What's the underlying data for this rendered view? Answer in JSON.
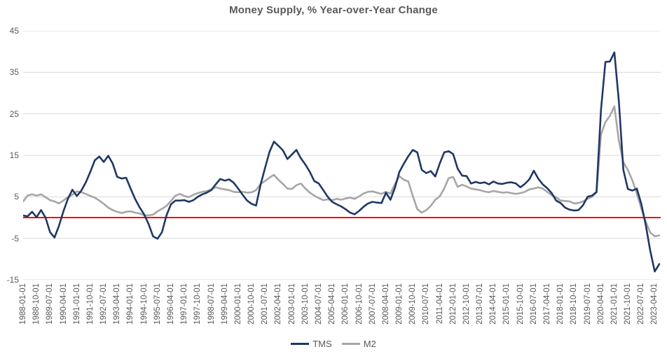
{
  "title": "Money Supply, % Year-over-Year Change",
  "legend": [
    {
      "label": "TMS",
      "color": "#1f3864"
    },
    {
      "label": "M2",
      "color": "#a6a6a6"
    }
  ],
  "colors": {
    "tms": "#1f3864",
    "m2": "#a6a6a6",
    "zero_line": "#ff0000",
    "gridline": "#d9d9d9",
    "text": "#595959"
  },
  "chart_data": {
    "type": "line",
    "title": "Money Supply, % Year-over-Year Change",
    "xlabel": "",
    "ylabel": "",
    "start_date": "1988-01-01",
    "step_months": 3,
    "x_domain_months": [
      0,
      427
    ],
    "ylim": [
      -15,
      45
    ],
    "y_ticks": [
      45,
      35,
      25,
      15,
      5,
      -5,
      -15
    ],
    "grid": true,
    "legend_position": "bottom",
    "zero_line": {
      "value": 0,
      "color": "#ff0000"
    },
    "x_tick_labels": [
      "1988-01-01",
      "1988-10-01",
      "1989-07-01",
      "1990-04-01",
      "1991-01-01",
      "1991-10-01",
      "1992-07-01",
      "1993-04-01",
      "1994-01-01",
      "1994-10-01",
      "1995-07-01",
      "1996-04-01",
      "1997-01-01",
      "1997-10-01",
      "1998-07-01",
      "1999-04-01",
      "2000-01-01",
      "2000-10-01",
      "2001-07-01",
      "2002-04-01",
      "2003-01-01",
      "2003-10-01",
      "2004-07-01",
      "2005-04-01",
      "2006-01-01",
      "2006-10-01",
      "2007-07-01",
      "2008-04-01",
      "2009-01-01",
      "2009-10-01",
      "2010-07-01",
      "2011-04-01",
      "2012-01-01",
      "2012-10-01",
      "2013-07-01",
      "2014-04-01",
      "2015-01-01",
      "2015-10-01",
      "2016-07-01",
      "2017-04-01",
      "2018-01-01",
      "2018-10-01",
      "2019-07-01",
      "2020-04-01",
      "2021-01-01",
      "2021-10-01",
      "2022-07-01",
      "2023-04-01"
    ],
    "x_tick_step_months": 9,
    "series": [
      {
        "name": "TMS",
        "color": "#1f3864",
        "values": [
          0.5,
          0.3,
          1.4,
          0.1,
          1.8,
          0.0,
          -3.5,
          -4.8,
          -2.0,
          1.5,
          4.5,
          6.7,
          5.2,
          6.5,
          8.5,
          11.0,
          13.8,
          14.7,
          13.4,
          14.9,
          13.0,
          9.8,
          9.4,
          9.6,
          7.0,
          4.5,
          2.5,
          0.8,
          -1.5,
          -4.5,
          -5.1,
          -3.5,
          0.5,
          3.2,
          4.1,
          4.1,
          4.2,
          3.8,
          4.2,
          5.0,
          5.6,
          6.0,
          6.6,
          8.0,
          9.3,
          8.9,
          9.2,
          8.4,
          7.0,
          5.5,
          4.1,
          3.3,
          2.9,
          7.9,
          11.9,
          15.8,
          18.3,
          17.3,
          16.2,
          14.1,
          15.2,
          16.3,
          14.3,
          12.8,
          11.0,
          8.8,
          8.2,
          6.6,
          5.0,
          3.8,
          3.2,
          2.7,
          2.0,
          1.2,
          0.8,
          1.6,
          2.6,
          3.4,
          3.8,
          3.6,
          3.5,
          6.0,
          4.3,
          7.2,
          11.0,
          13.0,
          14.8,
          16.3,
          15.7,
          11.5,
          10.7,
          11.2,
          9.9,
          13.0,
          15.7,
          16.0,
          15.3,
          11.8,
          10.1,
          10.0,
          8.2,
          8.6,
          8.3,
          8.5,
          8.0,
          8.7,
          8.2,
          8.1,
          8.4,
          8.5,
          8.2,
          7.3,
          8.1,
          9.2,
          11.3,
          9.4,
          8.0,
          7.1,
          5.9,
          4.1,
          3.5,
          2.4,
          1.9,
          1.7,
          1.8,
          3.0,
          5.0,
          5.3,
          6.2,
          26.0,
          37.5,
          37.6,
          39.8,
          28.0,
          11.5,
          6.9,
          6.5,
          7.0,
          3.3,
          -1.8,
          -8.0,
          -13.0,
          -11.2
        ]
      },
      {
        "name": "M2",
        "color": "#a6a6a6",
        "values": [
          3.9,
          5.3,
          5.6,
          5.3,
          5.6,
          4.9,
          4.2,
          3.9,
          3.4,
          4.1,
          4.9,
          5.5,
          6.3,
          6.1,
          5.7,
          5.2,
          4.8,
          4.1,
          3.3,
          2.4,
          1.8,
          1.4,
          1.1,
          1.4,
          1.5,
          1.2,
          1.0,
          0.6,
          0.5,
          0.7,
          1.5,
          2.1,
          2.8,
          4.0,
          5.3,
          5.7,
          5.2,
          4.9,
          5.5,
          5.9,
          6.2,
          6.4,
          6.8,
          7.3,
          7.0,
          6.8,
          6.6,
          6.2,
          6.1,
          6.2,
          6.0,
          6.1,
          6.6,
          8.1,
          8.8,
          9.6,
          10.3,
          9.1,
          8.1,
          7.0,
          6.9,
          7.8,
          8.2,
          7.0,
          6.0,
          5.3,
          4.7,
          4.2,
          4.4,
          4.2,
          4.5,
          4.3,
          4.6,
          4.8,
          4.5,
          5.1,
          5.8,
          6.2,
          6.3,
          6.0,
          5.7,
          6.2,
          5.8,
          8.1,
          10.0,
          9.1,
          8.7,
          5.2,
          2.0,
          1.2,
          1.8,
          2.8,
          4.3,
          5.1,
          7.0,
          9.5,
          9.8,
          7.4,
          7.9,
          7.5,
          7.0,
          6.8,
          6.6,
          6.3,
          6.1,
          6.4,
          6.2,
          6.0,
          6.1,
          5.9,
          5.7,
          5.9,
          6.2,
          6.8,
          7.0,
          7.3,
          7.0,
          6.2,
          5.4,
          4.9,
          4.1,
          4.0,
          3.9,
          3.4,
          3.5,
          3.9,
          4.5,
          5.0,
          6.0,
          20.0,
          23.0,
          24.5,
          26.8,
          18.5,
          13.3,
          11.5,
          9.0,
          5.8,
          2.2,
          -1.0,
          -3.6,
          -4.5,
          -4.3
        ]
      }
    ]
  }
}
